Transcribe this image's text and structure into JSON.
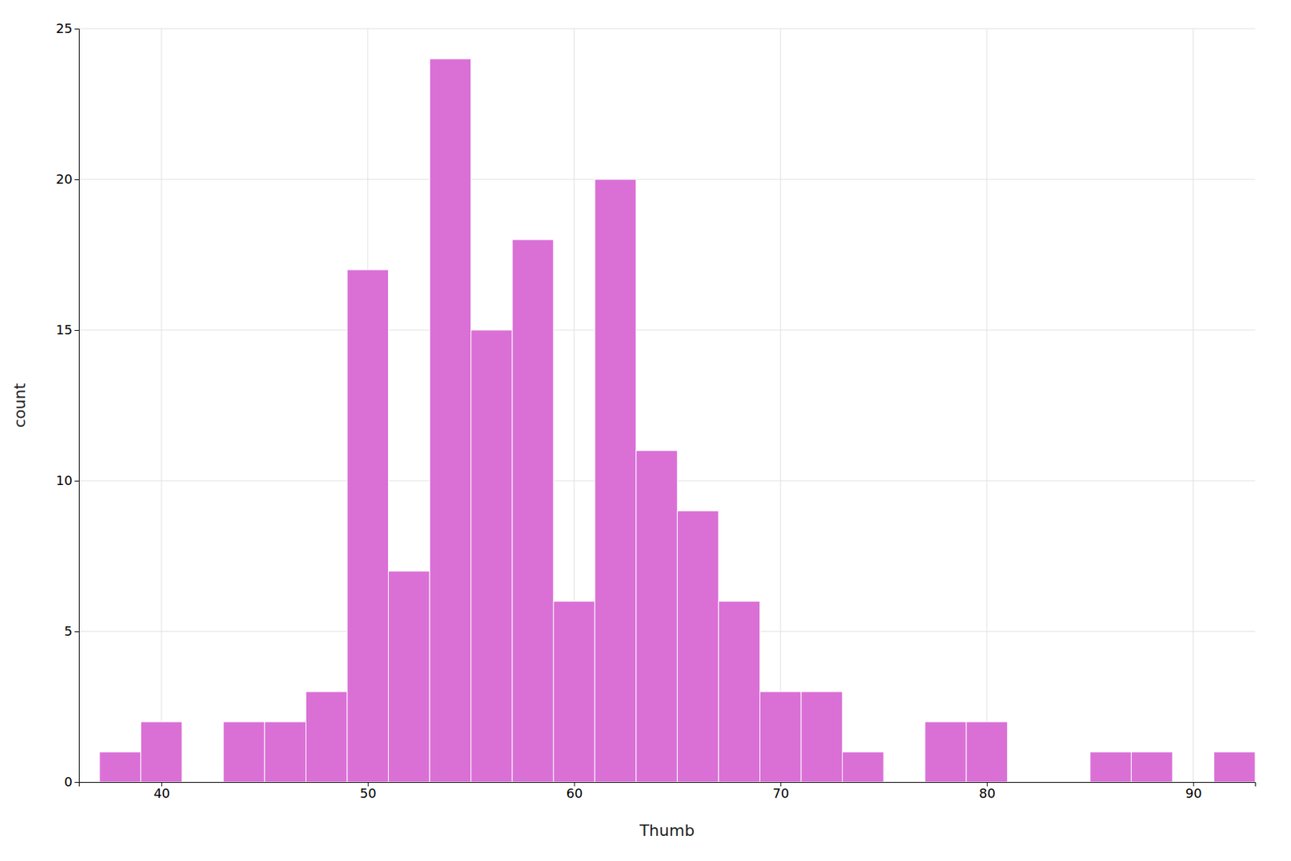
{
  "chart_data": {
    "type": "histogram",
    "xlabel": "Thumb",
    "ylabel": "count",
    "values": [
      1,
      2,
      0,
      2,
      2,
      3,
      17,
      7,
      24,
      15,
      18,
      6,
      20,
      11,
      9,
      6,
      3,
      3,
      1,
      0,
      2,
      2,
      0,
      0,
      1,
      1,
      0,
      1
    ],
    "bins": [
      37,
      39,
      41,
      43,
      45,
      47,
      49,
      51,
      53,
      55,
      57,
      59,
      61,
      63,
      65,
      67,
      69,
      71,
      73,
      75,
      77,
      79,
      81,
      83,
      85,
      87,
      89,
      91,
      93
    ],
    "color": "orchid",
    "xlim": [
      36,
      93
    ],
    "ylim": [
      0,
      25
    ],
    "xticks": [
      40,
      50,
      60,
      70,
      80,
      90
    ],
    "yticks": [
      0,
      5,
      10,
      15,
      20,
      25
    ],
    "grid": true
  }
}
